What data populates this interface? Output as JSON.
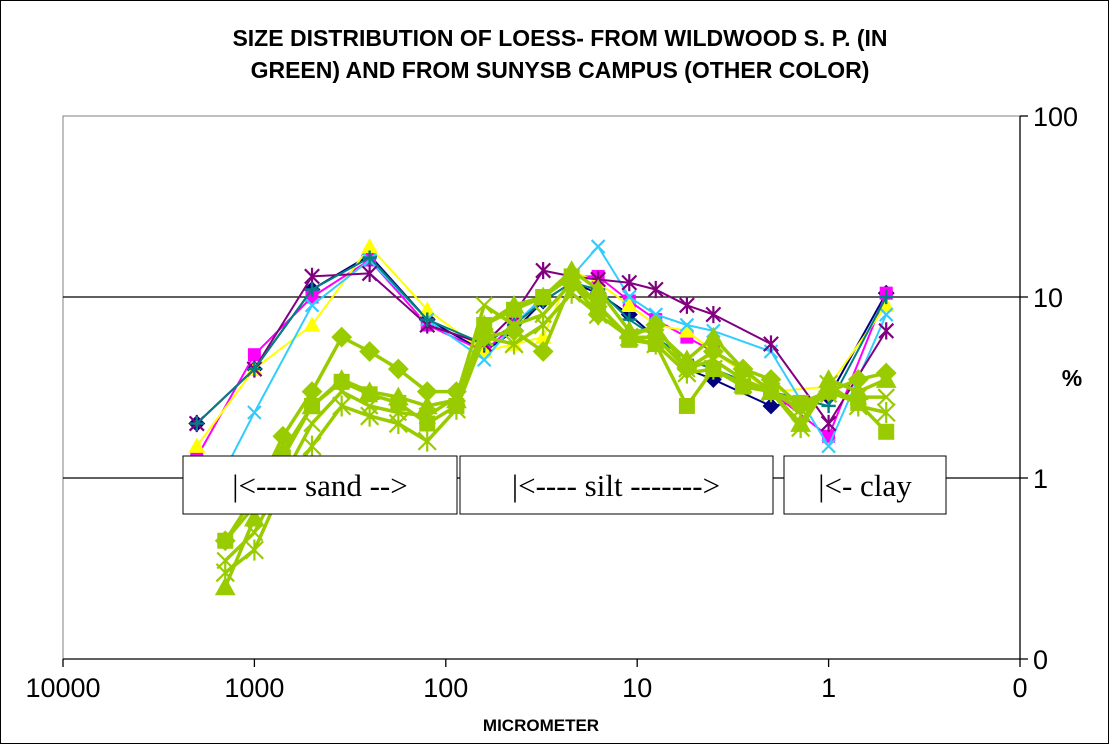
{
  "chart_data": {
    "type": "line",
    "title_lines": [
      "SIZE DISTRIBUTION OF LOESS- FROM WILDWOOD S. P. (IN",
      "GREEN) AND FROM SUNYSB CAMPUS (OTHER COLOR)"
    ],
    "xlabel": "MICROMETER",
    "ylabel": "%",
    "x_scale": "log-reversed",
    "x_ticks": [
      "10000",
      "1000",
      "100",
      "10",
      "1",
      "0"
    ],
    "y_scale": "log",
    "y_ticks": [
      "100",
      "10",
      "1",
      "0"
    ],
    "grid": "horizontal major lines",
    "legend": "none",
    "annotations": [
      "|<---- sand -->",
      "|<---- silt ------->",
      "|<- clay"
    ],
    "colors": {
      "navy": "#000080",
      "magenta": "#ff00ff",
      "yellow": "#ffff00",
      "cyan": "#33ccff",
      "purple": "#800080",
      "teal": "#008080",
      "green": "#99cc00"
    },
    "series": [
      {
        "color": "navy",
        "marker": "diamond",
        "x": [
          2000,
          1000,
          500,
          250,
          125,
          63,
          44,
          31,
          22,
          16,
          11,
          8,
          5.5,
          4,
          2,
          1,
          0.5
        ],
        "y": [
          2.0,
          4.0,
          11.0,
          17.0,
          7.5,
          5.0,
          6.5,
          9.5,
          12.0,
          10.5,
          8.0,
          6.0,
          4.0,
          3.5,
          2.5,
          2.8,
          10.5
        ]
      },
      {
        "color": "magenta",
        "marker": "square",
        "x": [
          2000,
          1000,
          500,
          250,
          125,
          63,
          44,
          31,
          22,
          16,
          11,
          8,
          5.5,
          4,
          2,
          1,
          0.5
        ],
        "y": [
          1.3,
          4.8,
          10.0,
          16.0,
          7.0,
          5.0,
          7.0,
          10.0,
          13.0,
          13.0,
          9.5,
          7.5,
          6.0,
          5.0,
          3.0,
          1.7,
          10.5
        ]
      },
      {
        "color": "yellow",
        "marker": "triangle",
        "x": [
          2000,
          1000,
          500,
          250,
          125,
          63,
          44,
          31,
          22,
          16,
          11,
          8,
          5.5,
          4,
          2,
          1,
          0.5
        ],
        "y": [
          1.5,
          4.0,
          7.0,
          19.0,
          8.5,
          5.0,
          5.5,
          6.0,
          14.0,
          12.0,
          9.0,
          7.0,
          6.5,
          5.0,
          3.0,
          3.2,
          9.0
        ]
      },
      {
        "color": "cyan",
        "marker": "x",
        "x": [
          1500,
          1000,
          500,
          250,
          125,
          63,
          44,
          31,
          22,
          16,
          11,
          8,
          5.5,
          4,
          2,
          1,
          0.5
        ],
        "y": [
          1.0,
          2.3,
          9.0,
          16.0,
          7.5,
          4.5,
          7.0,
          10.0,
          13.0,
          19.0,
          10.0,
          8.0,
          7.0,
          6.5,
          5.0,
          1.5,
          8.0
        ]
      },
      {
        "color": "purple",
        "marker": "star",
        "x": [
          2000,
          1000,
          500,
          250,
          125,
          63,
          44,
          31,
          22,
          16,
          11,
          8,
          5.5,
          4,
          2,
          1,
          0.5
        ],
        "y": [
          2.0,
          4.0,
          13.0,
          13.5,
          7.0,
          5.5,
          8.0,
          14.0,
          13.0,
          12.5,
          12.0,
          11.0,
          9.0,
          8.0,
          5.5,
          2.0,
          6.5
        ]
      },
      {
        "color": "teal",
        "marker": "plus",
        "x": [
          2000,
          1000,
          500,
          250,
          125,
          63,
          44,
          31,
          22,
          16,
          11,
          8,
          5.5,
          4,
          2,
          1,
          0.5
        ],
        "y": [
          2.0,
          4.0,
          11.0,
          16.5,
          7.5,
          5.5,
          7.0,
          9.5,
          12.0,
          11.0,
          7.5,
          6.0,
          4.5,
          4.0,
          3.0,
          2.5,
          10.0
        ]
      },
      {
        "color": "green",
        "marker": "diamond",
        "x": [
          1420,
          1000,
          710,
          500,
          350,
          250,
          177,
          125,
          88,
          63,
          44,
          31,
          22,
          16,
          11,
          8,
          5.5,
          4,
          2.8,
          2,
          1.4,
          1,
          0.7,
          0.5
        ],
        "y": [
          0.45,
          0.8,
          1.7,
          3.0,
          6.0,
          5.0,
          4.0,
          3.0,
          3.0,
          6.0,
          6.5,
          5.0,
          12.0,
          8.0,
          6.0,
          7.0,
          4.0,
          5.0,
          4.0,
          3.5,
          2.5,
          3.0,
          3.5,
          3.8
        ]
      },
      {
        "color": "green",
        "marker": "triangle",
        "x": [
          1420,
          1000,
          710,
          500,
          350,
          250,
          177,
          125,
          88,
          63,
          44,
          31,
          22,
          16,
          11,
          8,
          5.5,
          4,
          2.8,
          2,
          1.4,
          1,
          0.7,
          0.5
        ],
        "y": [
          0.25,
          0.6,
          1.4,
          2.5,
          3.5,
          3.0,
          2.8,
          2.5,
          2.7,
          7.0,
          9.0,
          10.0,
          14.0,
          11.0,
          6.5,
          6.5,
          4.5,
          6.0,
          4.0,
          3.0,
          2.0,
          3.5,
          3.0,
          3.5
        ]
      },
      {
        "color": "green",
        "marker": "square",
        "x": [
          1420,
          1000,
          710,
          500,
          350,
          250,
          177,
          125,
          88,
          63,
          44,
          31,
          22,
          16,
          11,
          8,
          5.5,
          4,
          2.8,
          2,
          1.4,
          1,
          0.7,
          0.5
        ],
        "y": [
          0.45,
          0.7,
          1.3,
          2.5,
          3.4,
          2.9,
          2.6,
          2.0,
          2.5,
          7.0,
          8.5,
          10.0,
          13.0,
          9.0,
          5.8,
          5.5,
          2.5,
          4.0,
          3.2,
          3.0,
          2.6,
          3.0,
          2.6,
          1.8
        ]
      },
      {
        "color": "green",
        "marker": "x",
        "x": [
          1420,
          1000,
          710,
          500,
          350,
          250,
          177,
          125,
          88,
          63,
          44,
          31,
          22,
          16,
          11,
          8,
          5.5,
          4,
          2.8,
          2,
          1.4,
          1,
          0.7,
          0.5
        ],
        "y": [
          0.35,
          0.5,
          1.0,
          2.0,
          3.0,
          2.5,
          2.3,
          2.2,
          2.8,
          9.0,
          7.0,
          8.0,
          12.0,
          9.0,
          6.0,
          6.0,
          4.0,
          4.5,
          3.5,
          3.0,
          2.4,
          2.9,
          2.8,
          2.8
        ]
      },
      {
        "color": "green",
        "marker": "star",
        "x": [
          1420,
          1000,
          710,
          500,
          350,
          250,
          177,
          125,
          88,
          63,
          44,
          31,
          22,
          16,
          11,
          8,
          5.5,
          4,
          2.8,
          2,
          1.4,
          1,
          0.7,
          0.5
        ],
        "y": [
          0.3,
          0.4,
          0.9,
          1.5,
          2.5,
          2.2,
          2.0,
          1.6,
          2.4,
          6.0,
          5.5,
          7.0,
          10.5,
          8.0,
          6.0,
          5.5,
          3.8,
          4.0,
          3.3,
          3.0,
          1.9,
          3.3,
          2.5,
          2.3
        ]
      }
    ]
  }
}
